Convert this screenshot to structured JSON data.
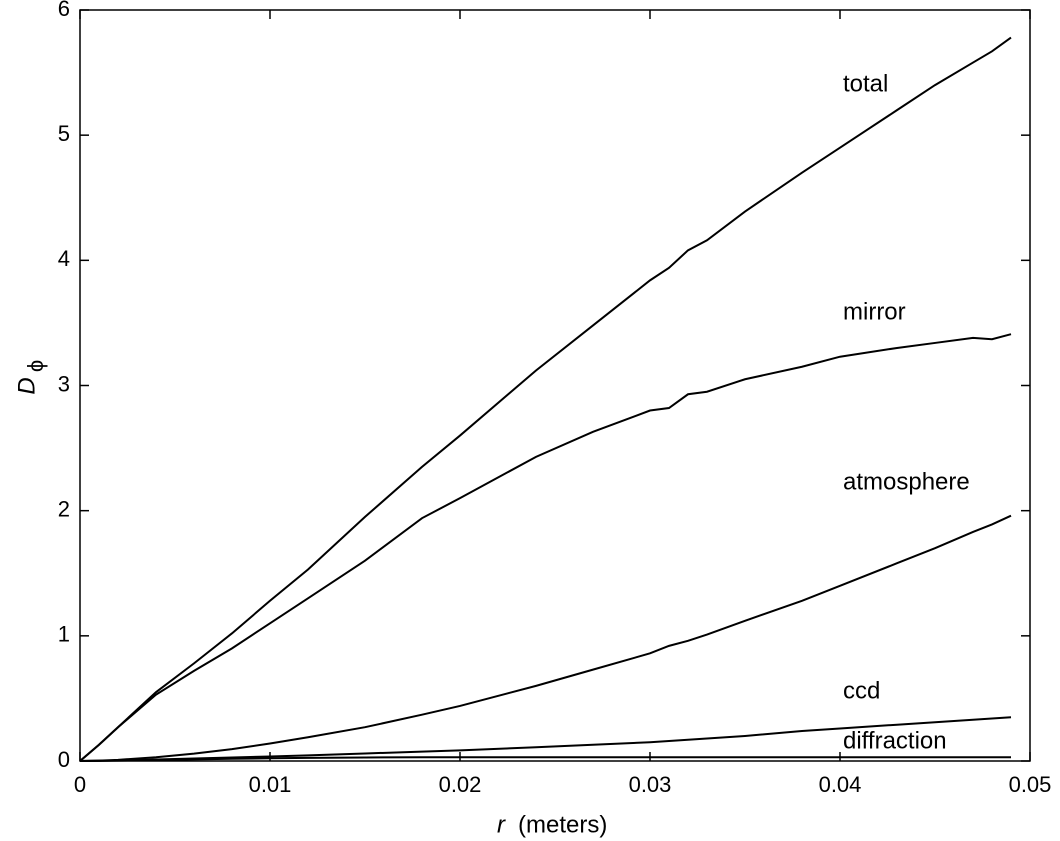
{
  "chart_data": {
    "type": "line",
    "ylabel": "D",
    "ylabel_subscript": "ϕ",
    "xlabel_var": "r",
    "xlabel": "(meters)",
    "x": [
      0,
      0.001,
      0.002,
      0.004,
      0.006,
      0.008,
      0.01,
      0.012,
      0.015,
      0.018,
      0.02,
      0.024,
      0.027,
      0.03,
      0.031,
      0.032,
      0.033,
      0.035,
      0.038,
      0.04,
      0.043,
      0.045,
      0.047,
      0.048,
      0.049
    ],
    "series": [
      {
        "name": "total",
        "color": "#000000",
        "values": [
          0,
          0.13,
          0.27,
          0.55,
          0.78,
          1.02,
          1.28,
          1.53,
          1.95,
          2.35,
          2.6,
          3.12,
          3.48,
          3.84,
          3.94,
          4.08,
          4.16,
          4.39,
          4.7,
          4.9,
          5.2,
          5.4,
          5.58,
          5.67,
          5.78
        ]
      },
      {
        "name": "mirror",
        "color": "#000000",
        "values": [
          0,
          0.13,
          0.27,
          0.53,
          0.72,
          0.9,
          1.1,
          1.3,
          1.6,
          1.94,
          2.1,
          2.43,
          2.63,
          2.8,
          2.82,
          2.93,
          2.95,
          3.05,
          3.15,
          3.23,
          3.3,
          3.34,
          3.38,
          3.37,
          3.41
        ]
      },
      {
        "name": "atmosphere",
        "color": "#000000",
        "values": [
          0,
          0.003,
          0.009,
          0.03,
          0.059,
          0.095,
          0.14,
          0.19,
          0.27,
          0.37,
          0.44,
          0.6,
          0.73,
          0.86,
          0.92,
          0.96,
          1.01,
          1.12,
          1.28,
          1.4,
          1.58,
          1.7,
          1.83,
          1.89,
          1.96
        ]
      },
      {
        "name": "ccd",
        "color": "#000000",
        "values": [
          0,
          0.002,
          0.005,
          0.012,
          0.02,
          0.028,
          0.036,
          0.045,
          0.06,
          0.075,
          0.085,
          0.11,
          0.13,
          0.15,
          0.16,
          0.17,
          0.18,
          0.2,
          0.24,
          0.26,
          0.29,
          0.31,
          0.33,
          0.34,
          0.35
        ]
      },
      {
        "name": "diffraction",
        "color": "#000000",
        "values": [
          0,
          0.001,
          0.003,
          0.008,
          0.013,
          0.018,
          0.022,
          0.025,
          0.028,
          0.03,
          0.03,
          0.03,
          0.03,
          0.03,
          0.03,
          0.03,
          0.03,
          0.03,
          0.03,
          0.03,
          0.03,
          0.03,
          0.03,
          0.03,
          0.03
        ]
      }
    ],
    "xlim": [
      0,
      0.05
    ],
    "xticks": [
      0,
      0.01,
      0.02,
      0.03,
      0.04,
      0.05
    ],
    "ylim": [
      0,
      6
    ],
    "yticks": [
      0,
      1,
      2,
      3,
      4,
      5,
      6
    ],
    "grid": false
  }
}
